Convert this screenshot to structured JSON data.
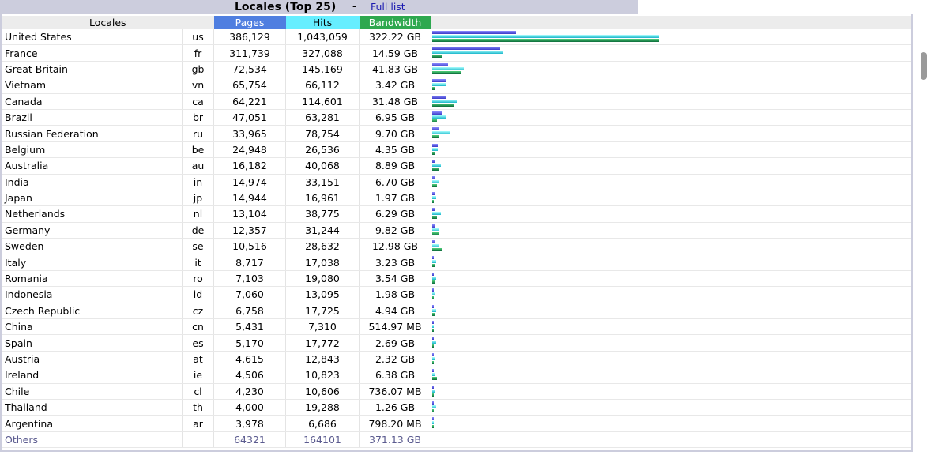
{
  "header": {
    "title": "Locales (Top 25)",
    "separator": "-",
    "full_list_link": "Full list"
  },
  "table": {
    "columns": {
      "locales": "Locales",
      "pages": "Pages",
      "hits": "Hits",
      "bandwidth": "Bandwidth"
    },
    "rows": [
      {
        "name": "United States",
        "code": "us",
        "pages": "386,129",
        "hits": "1,043,059",
        "bandwidth": "322.22 GB",
        "pages_n": 386129,
        "hits_n": 1043059,
        "bw_gb": 322.22
      },
      {
        "name": "France",
        "code": "fr",
        "pages": "311,739",
        "hits": "327,088",
        "bandwidth": "14.59 GB",
        "pages_n": 311739,
        "hits_n": 327088,
        "bw_gb": 14.59
      },
      {
        "name": "Great Britain",
        "code": "gb",
        "pages": "72,534",
        "hits": "145,169",
        "bandwidth": "41.83 GB",
        "pages_n": 72534,
        "hits_n": 145169,
        "bw_gb": 41.83
      },
      {
        "name": "Vietnam",
        "code": "vn",
        "pages": "65,754",
        "hits": "66,112",
        "bandwidth": "3.42 GB",
        "pages_n": 65754,
        "hits_n": 66112,
        "bw_gb": 3.42
      },
      {
        "name": "Canada",
        "code": "ca",
        "pages": "64,221",
        "hits": "114,601",
        "bandwidth": "31.48 GB",
        "pages_n": 64221,
        "hits_n": 114601,
        "bw_gb": 31.48
      },
      {
        "name": "Brazil",
        "code": "br",
        "pages": "47,051",
        "hits": "63,281",
        "bandwidth": "6.95 GB",
        "pages_n": 47051,
        "hits_n": 63281,
        "bw_gb": 6.95
      },
      {
        "name": "Russian Federation",
        "code": "ru",
        "pages": "33,965",
        "hits": "78,754",
        "bandwidth": "9.70 GB",
        "pages_n": 33965,
        "hits_n": 78754,
        "bw_gb": 9.7
      },
      {
        "name": "Belgium",
        "code": "be",
        "pages": "24,948",
        "hits": "26,536",
        "bandwidth": "4.35 GB",
        "pages_n": 24948,
        "hits_n": 26536,
        "bw_gb": 4.35
      },
      {
        "name": "Australia",
        "code": "au",
        "pages": "16,182",
        "hits": "40,068",
        "bandwidth": "8.89 GB",
        "pages_n": 16182,
        "hits_n": 40068,
        "bw_gb": 8.89
      },
      {
        "name": "India",
        "code": "in",
        "pages": "14,974",
        "hits": "33,151",
        "bandwidth": "6.70 GB",
        "pages_n": 14974,
        "hits_n": 33151,
        "bw_gb": 6.7
      },
      {
        "name": "Japan",
        "code": "jp",
        "pages": "14,944",
        "hits": "16,961",
        "bandwidth": "1.97 GB",
        "pages_n": 14944,
        "hits_n": 16961,
        "bw_gb": 1.97
      },
      {
        "name": "Netherlands",
        "code": "nl",
        "pages": "13,104",
        "hits": "38,775",
        "bandwidth": "6.29 GB",
        "pages_n": 13104,
        "hits_n": 38775,
        "bw_gb": 6.29
      },
      {
        "name": "Germany",
        "code": "de",
        "pages": "12,357",
        "hits": "31,244",
        "bandwidth": "9.82 GB",
        "pages_n": 12357,
        "hits_n": 31244,
        "bw_gb": 9.82
      },
      {
        "name": "Sweden",
        "code": "se",
        "pages": "10,516",
        "hits": "28,632",
        "bandwidth": "12.98 GB",
        "pages_n": 10516,
        "hits_n": 28632,
        "bw_gb": 12.98
      },
      {
        "name": "Italy",
        "code": "it",
        "pages": "8,717",
        "hits": "17,038",
        "bandwidth": "3.23 GB",
        "pages_n": 8717,
        "hits_n": 17038,
        "bw_gb": 3.23
      },
      {
        "name": "Romania",
        "code": "ro",
        "pages": "7,103",
        "hits": "19,080",
        "bandwidth": "3.54 GB",
        "pages_n": 7103,
        "hits_n": 19080,
        "bw_gb": 3.54
      },
      {
        "name": "Indonesia",
        "code": "id",
        "pages": "7,060",
        "hits": "13,095",
        "bandwidth": "1.98 GB",
        "pages_n": 7060,
        "hits_n": 13095,
        "bw_gb": 1.98
      },
      {
        "name": "Czech Republic",
        "code": "cz",
        "pages": "6,758",
        "hits": "17,725",
        "bandwidth": "4.94 GB",
        "pages_n": 6758,
        "hits_n": 17725,
        "bw_gb": 4.94
      },
      {
        "name": "China",
        "code": "cn",
        "pages": "5,431",
        "hits": "7,310",
        "bandwidth": "514.97 MB",
        "pages_n": 5431,
        "hits_n": 7310,
        "bw_gb": 0.5
      },
      {
        "name": "Spain",
        "code": "es",
        "pages": "5,170",
        "hits": "17,772",
        "bandwidth": "2.69 GB",
        "pages_n": 5170,
        "hits_n": 17772,
        "bw_gb": 2.69
      },
      {
        "name": "Austria",
        "code": "at",
        "pages": "4,615",
        "hits": "12,843",
        "bandwidth": "2.32 GB",
        "pages_n": 4615,
        "hits_n": 12843,
        "bw_gb": 2.32
      },
      {
        "name": "Ireland",
        "code": "ie",
        "pages": "4,506",
        "hits": "10,823",
        "bandwidth": "6.38 GB",
        "pages_n": 4506,
        "hits_n": 10823,
        "bw_gb": 6.38
      },
      {
        "name": "Chile",
        "code": "cl",
        "pages": "4,230",
        "hits": "10,606",
        "bandwidth": "736.07 MB",
        "pages_n": 4230,
        "hits_n": 10606,
        "bw_gb": 0.72
      },
      {
        "name": "Thailand",
        "code": "th",
        "pages": "4,000",
        "hits": "19,288",
        "bandwidth": "1.26 GB",
        "pages_n": 4000,
        "hits_n": 19288,
        "bw_gb": 1.26
      },
      {
        "name": "Argentina",
        "code": "ar",
        "pages": "3,978",
        "hits": "6,686",
        "bandwidth": "798.20 MB",
        "pages_n": 3978,
        "hits_n": 6686,
        "bw_gb": 0.78
      }
    ],
    "others": {
      "name": "Others",
      "pages": "64321",
      "hits": "164101",
      "bandwidth": "371.13 GB"
    }
  },
  "chart_data": {
    "type": "bar",
    "max_hits": 1043059,
    "max_bw_gb": 322.22
  }
}
